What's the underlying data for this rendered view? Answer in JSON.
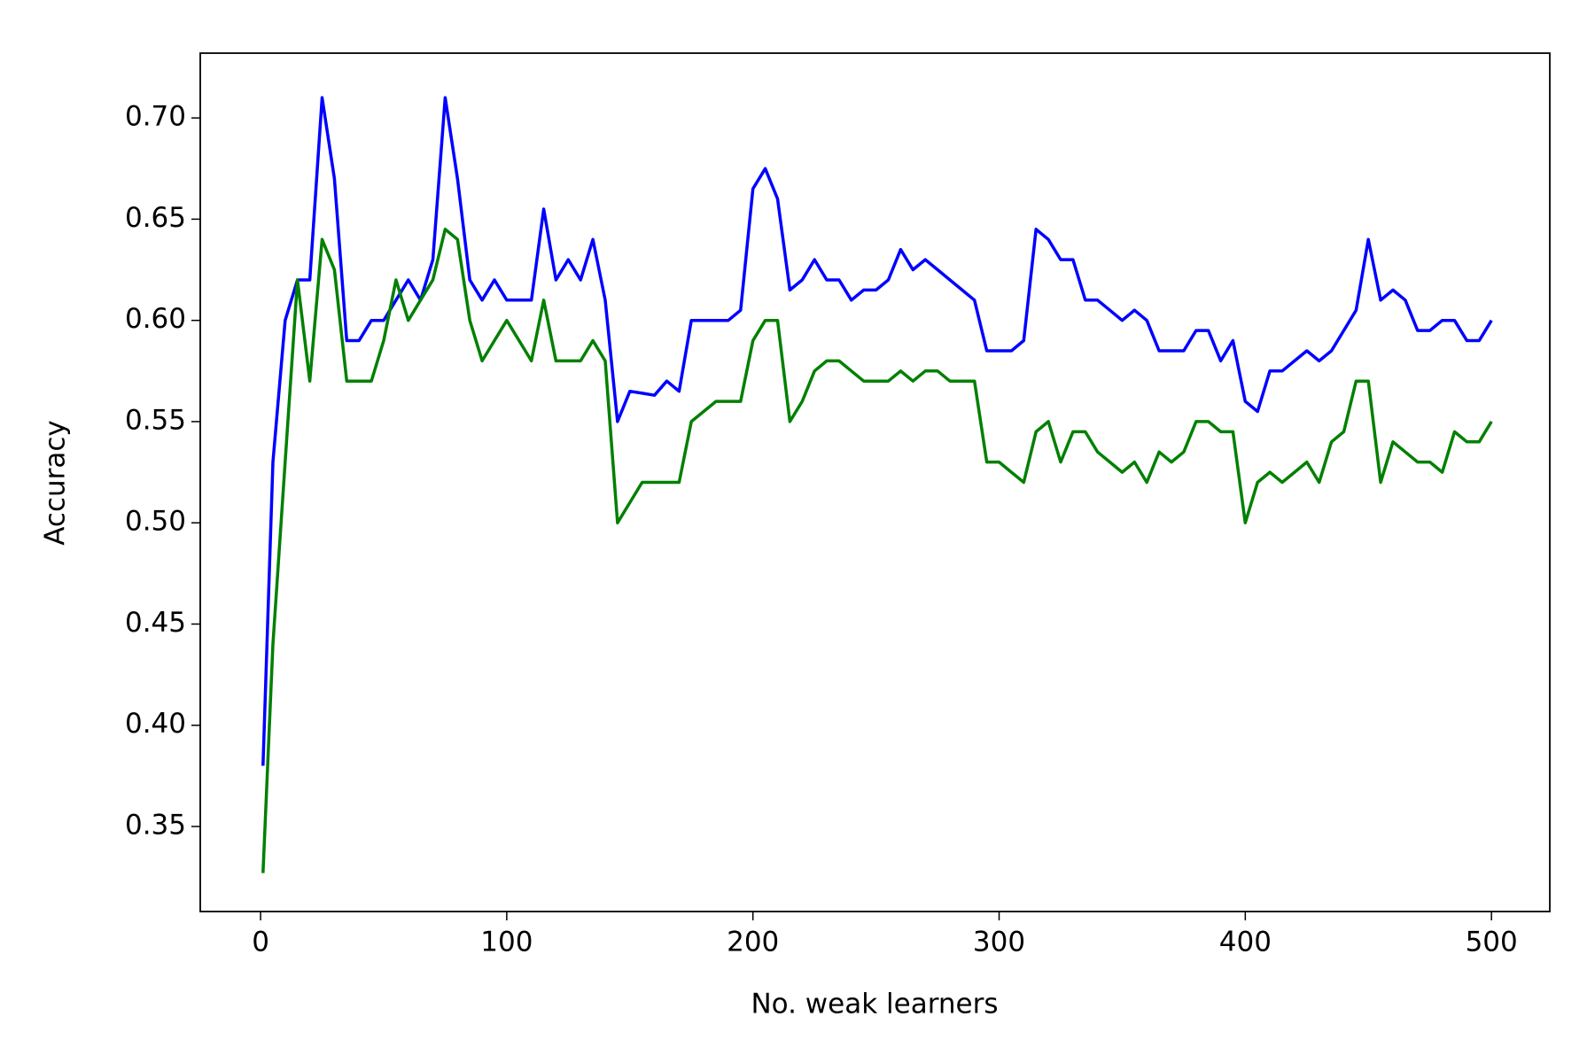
{
  "chart_data": {
    "type": "line",
    "xlabel": "No. weak learners",
    "ylabel": "Accuracy",
    "x": [
      1,
      5,
      10,
      15,
      20,
      25,
      30,
      35,
      40,
      45,
      50,
      55,
      60,
      65,
      70,
      75,
      80,
      85,
      90,
      95,
      100,
      105,
      110,
      115,
      120,
      125,
      130,
      135,
      140,
      145,
      150,
      155,
      160,
      165,
      170,
      175,
      180,
      185,
      190,
      195,
      200,
      205,
      210,
      215,
      220,
      225,
      230,
      235,
      240,
      245,
      250,
      255,
      260,
      265,
      270,
      275,
      280,
      285,
      290,
      295,
      300,
      305,
      310,
      315,
      320,
      325,
      330,
      335,
      340,
      345,
      350,
      355,
      360,
      365,
      370,
      375,
      380,
      385,
      390,
      395,
      400,
      405,
      410,
      415,
      420,
      425,
      430,
      435,
      440,
      445,
      450,
      455,
      460,
      465,
      470,
      475,
      480,
      485,
      490,
      495,
      500
    ],
    "series": [
      {
        "color": "#0000ff",
        "values": [
          0.38,
          0.53,
          0.6,
          0.62,
          0.62,
          0.71,
          0.67,
          0.59,
          0.59,
          0.6,
          0.6,
          0.61,
          0.62,
          0.61,
          0.63,
          0.71,
          0.67,
          0.62,
          0.61,
          0.62,
          0.61,
          0.61,
          0.61,
          0.655,
          0.62,
          0.63,
          0.62,
          0.64,
          0.61,
          0.55,
          0.565,
          0.564,
          0.563,
          0.57,
          0.565,
          0.6,
          0.6,
          0.6,
          0.6,
          0.605,
          0.665,
          0.675,
          0.66,
          0.615,
          0.62,
          0.63,
          0.62,
          0.62,
          0.61,
          0.615,
          0.615,
          0.62,
          0.635,
          0.625,
          0.63,
          0.625,
          0.62,
          0.615,
          0.61,
          0.585,
          0.585,
          0.585,
          0.59,
          0.645,
          0.64,
          0.63,
          0.63,
          0.61,
          0.61,
          0.605,
          0.6,
          0.605,
          0.6,
          0.585,
          0.585,
          0.585,
          0.595,
          0.595,
          0.58,
          0.59,
          0.56,
          0.555,
          0.575,
          0.575,
          0.58,
          0.585,
          0.58,
          0.585,
          0.595,
          0.605,
          0.64,
          0.61,
          0.615,
          0.61,
          0.595,
          0.595,
          0.6,
          0.6,
          0.59,
          0.59,
          0.6
        ]
      },
      {
        "color": "#008000",
        "values": [
          0.327,
          0.44,
          0.53,
          0.62,
          0.57,
          0.64,
          0.625,
          0.57,
          0.57,
          0.57,
          0.59,
          0.62,
          0.6,
          0.61,
          0.62,
          0.645,
          0.64,
          0.6,
          0.58,
          0.59,
          0.6,
          0.59,
          0.58,
          0.61,
          0.58,
          0.58,
          0.58,
          0.59,
          0.58,
          0.5,
          0.51,
          0.52,
          0.52,
          0.52,
          0.52,
          0.55,
          0.555,
          0.56,
          0.56,
          0.56,
          0.59,
          0.6,
          0.6,
          0.55,
          0.56,
          0.575,
          0.58,
          0.58,
          0.575,
          0.57,
          0.57,
          0.57,
          0.575,
          0.57,
          0.575,
          0.575,
          0.57,
          0.57,
          0.57,
          0.53,
          0.53,
          0.525,
          0.52,
          0.545,
          0.55,
          0.53,
          0.545,
          0.545,
          0.535,
          0.53,
          0.525,
          0.53,
          0.52,
          0.535,
          0.53,
          0.535,
          0.55,
          0.55,
          0.545,
          0.545,
          0.5,
          0.52,
          0.525,
          0.52,
          0.525,
          0.53,
          0.52,
          0.54,
          0.545,
          0.57,
          0.57,
          0.52,
          0.54,
          0.535,
          0.53,
          0.53,
          0.525,
          0.545,
          0.54,
          0.54,
          0.55
        ]
      }
    ],
    "xlim": [
      -24.5,
      523.7
    ],
    "ylim": [
      0.308,
      0.732
    ],
    "xticks": [
      0,
      100,
      200,
      300,
      400,
      500
    ],
    "yticks": [
      0.35,
      {
        "value": 0.4,
        "label": "0.40"
      },
      0.45,
      {
        "value": 0.5,
        "label": "0.50"
      },
      0.55,
      {
        "value": 0.6,
        "label": "0.60"
      },
      0.65,
      {
        "value": 0.7,
        "label": "0.70"
      }
    ]
  }
}
